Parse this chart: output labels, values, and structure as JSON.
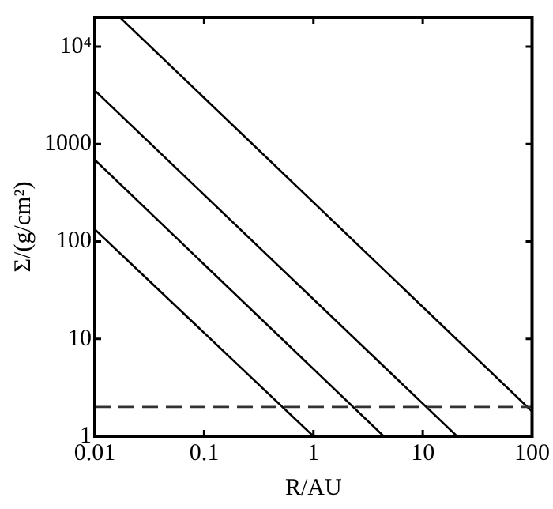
{
  "chart_data": {
    "type": "line",
    "xlabel": "R/AU",
    "ylabel": "Σ/(g/cm²)",
    "log": "xy",
    "grid": false,
    "legend": false,
    "marker": "none",
    "line_style": "solid",
    "xlim": [
      0.01,
      100
    ],
    "xticks": [
      0.01,
      0.1,
      1,
      10,
      100
    ],
    "ylim": [
      1,
      20000
    ],
    "yticks": [
      1,
      10,
      100,
      1000,
      {
        "value": 10000,
        "label": "10⁴"
      }
    ],
    "series": [
      {
        "color": "#000000",
        "x": [
          0.01,
          1
        ],
        "values": [
          133,
          1
        ]
      },
      {
        "color": "#000000",
        "x": [
          0.01,
          4.4
        ],
        "values": [
          690,
          1
        ]
      },
      {
        "color": "#000000",
        "x": [
          0.01,
          20.6
        ],
        "values": [
          3550,
          1
        ]
      },
      {
        "color": "#000000",
        "x": [
          0.017,
          100
        ],
        "values": [
          20000,
          1.8
        ]
      }
    ],
    "ref_lines": [
      {
        "axis": "y",
        "value": 2,
        "color": "#333333",
        "line_style": "dashed"
      }
    ]
  }
}
